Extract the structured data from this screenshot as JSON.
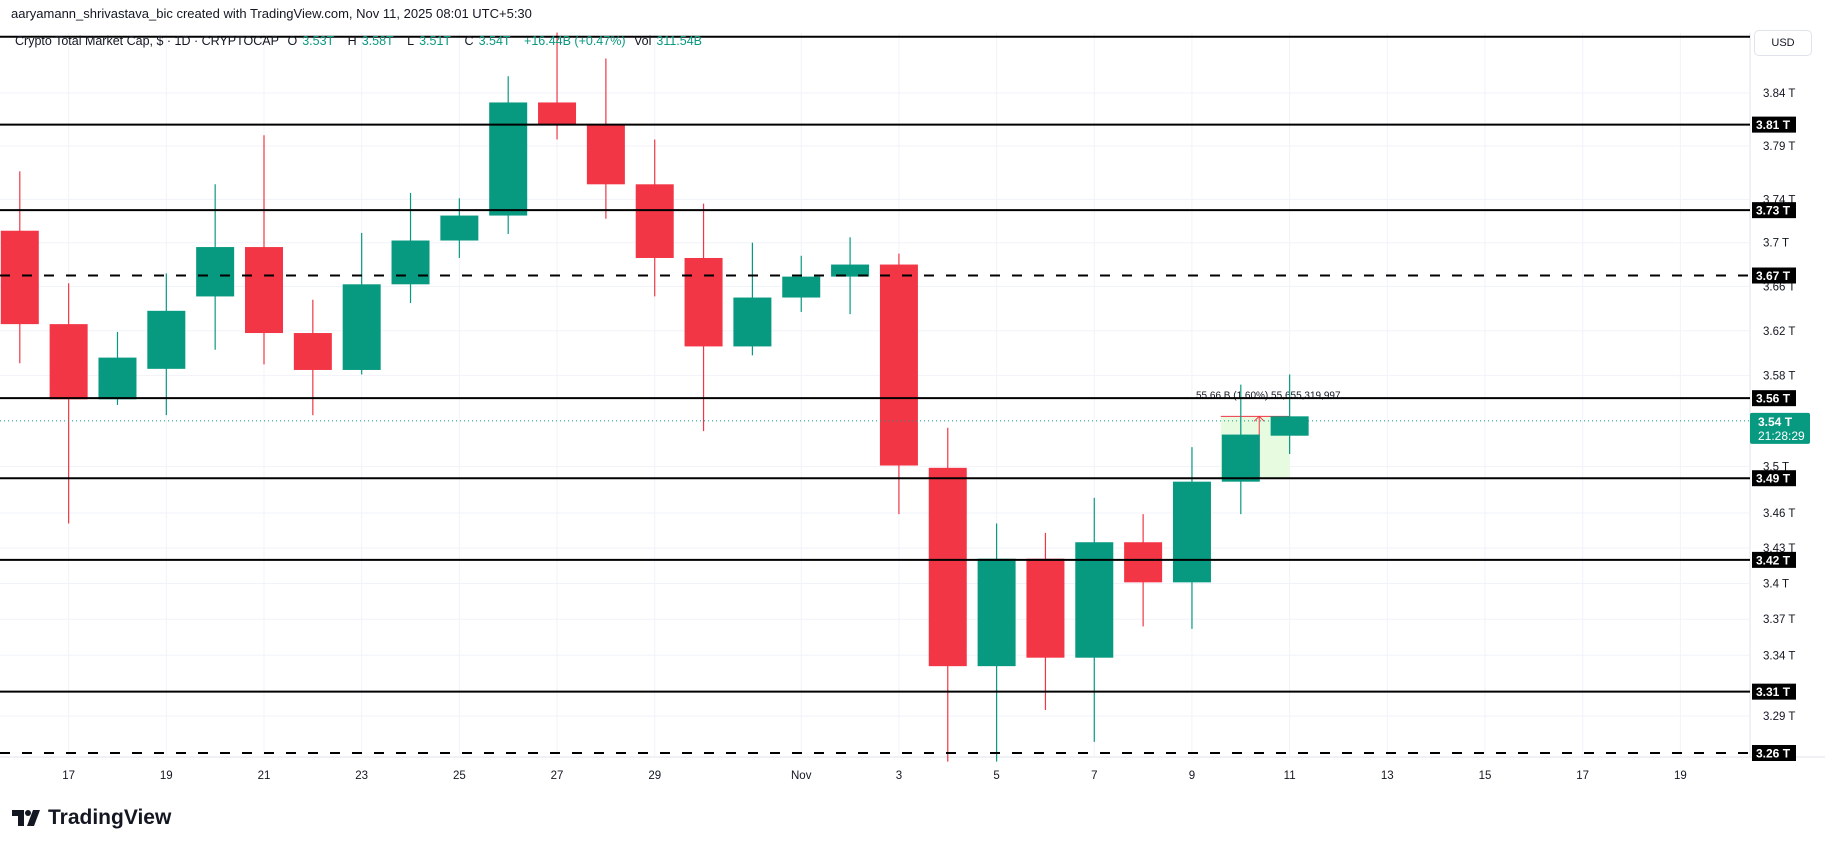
{
  "attribution": "aaryamann_shrivastava_bic created with TradingView.com, Nov 11, 2025 08:01 UTC+5:30",
  "legend": {
    "symbol": "Crypto Total Market Cap, $ · 1D · CRYPTOCAP",
    "o_label": "O",
    "o": "3.53T",
    "h_label": "H",
    "h": "3.58T",
    "l_label": "L",
    "l": "3.51T",
    "c_label": "C",
    "c": "3.54T",
    "change": "+16.44B (+0.47%)",
    "vol_label": "Vol",
    "vol": "311.54B"
  },
  "currency_button": "USD",
  "logo_text": "TradingView",
  "colors": {
    "up": "#089981",
    "down": "#f23645",
    "line": "#000000",
    "grid": "#f0f3fa",
    "measure_fill": "#e3fadb",
    "measure_stroke": "#f23645"
  },
  "chart_data": {
    "type": "candlestick",
    "scale": "log",
    "grid": true,
    "ylim": [
      3.253,
      3.894
    ],
    "x_ticks": [
      {
        "day": 1,
        "label": "17"
      },
      {
        "day": 3,
        "label": "19"
      },
      {
        "day": 5,
        "label": "21"
      },
      {
        "day": 7,
        "label": "23"
      },
      {
        "day": 9,
        "label": "25"
      },
      {
        "day": 11,
        "label": "27"
      },
      {
        "day": 13,
        "label": "29"
      },
      {
        "day": 16,
        "label": "Nov"
      },
      {
        "day": 18,
        "label": "3"
      },
      {
        "day": 20,
        "label": "5"
      },
      {
        "day": 22,
        "label": "7"
      },
      {
        "day": 24,
        "label": "9"
      },
      {
        "day": 26,
        "label": "11"
      },
      {
        "day": 28,
        "label": "13"
      },
      {
        "day": 30,
        "label": "15"
      },
      {
        "day": 32,
        "label": "17"
      },
      {
        "day": 34,
        "label": "19"
      }
    ],
    "y_ticks": [
      {
        "value": 3.84,
        "label": "3.84 T"
      },
      {
        "value": 3.79,
        "label": "3.79 T"
      },
      {
        "value": 3.74,
        "label": "3.74 T"
      },
      {
        "value": 3.7,
        "label": "3.7 T"
      },
      {
        "value": 3.66,
        "label": "3.66 T"
      },
      {
        "value": 3.62,
        "label": "3.62 T"
      },
      {
        "value": 3.58,
        "label": "3.58 T"
      },
      {
        "value": 3.5,
        "label": "3.5 T"
      },
      {
        "value": 3.46,
        "label": "3.46 T"
      },
      {
        "value": 3.43,
        "label": "3.43 T"
      },
      {
        "value": 3.4,
        "label": "3.4 T"
      },
      {
        "value": 3.37,
        "label": "3.37 T"
      },
      {
        "value": 3.34,
        "label": "3.34 T"
      },
      {
        "value": 3.29,
        "label": "3.29 T"
      }
    ],
    "candles": [
      {
        "date": "Oct 16",
        "o": 3.711,
        "h": 3.766,
        "l": 3.591,
        "c": 3.626
      },
      {
        "date": "Oct 17",
        "o": 3.626,
        "h": 3.663,
        "l": 3.451,
        "c": 3.559
      },
      {
        "date": "Oct 18",
        "o": 3.559,
        "h": 3.619,
        "l": 3.554,
        "c": 3.596
      },
      {
        "date": "Oct 19",
        "o": 3.586,
        "h": 3.672,
        "l": 3.545,
        "c": 3.638
      },
      {
        "date": "Oct 20",
        "o": 3.651,
        "h": 3.754,
        "l": 3.603,
        "c": 3.696
      },
      {
        "date": "Oct 21",
        "o": 3.696,
        "h": 3.8,
        "l": 3.59,
        "c": 3.618
      },
      {
        "date": "Oct 22",
        "o": 3.618,
        "h": 3.648,
        "l": 3.545,
        "c": 3.585
      },
      {
        "date": "Oct 23",
        "o": 3.585,
        "h": 3.709,
        "l": 3.581,
        "c": 3.662
      },
      {
        "date": "Oct 24",
        "o": 3.662,
        "h": 3.746,
        "l": 3.645,
        "c": 3.702
      },
      {
        "date": "Oct 25",
        "o": 3.702,
        "h": 3.741,
        "l": 3.686,
        "c": 3.725
      },
      {
        "date": "Oct 26",
        "o": 3.725,
        "h": 3.856,
        "l": 3.708,
        "c": 3.831
      },
      {
        "date": "Oct 27",
        "o": 3.831,
        "h": 3.898,
        "l": 3.796,
        "c": 3.81
      },
      {
        "date": "Oct 28",
        "o": 3.81,
        "h": 3.873,
        "l": 3.722,
        "c": 3.754
      },
      {
        "date": "Oct 29",
        "o": 3.754,
        "h": 3.796,
        "l": 3.651,
        "c": 3.686
      },
      {
        "date": "Oct 30",
        "o": 3.686,
        "h": 3.736,
        "l": 3.531,
        "c": 3.606
      },
      {
        "date": "Oct 31",
        "o": 3.606,
        "h": 3.7,
        "l": 3.598,
        "c": 3.65
      },
      {
        "date": "Nov 1",
        "o": 3.65,
        "h": 3.688,
        "l": 3.637,
        "c": 3.669
      },
      {
        "date": "Nov 2",
        "o": 3.669,
        "h": 3.705,
        "l": 3.635,
        "c": 3.68
      },
      {
        "date": "Nov 3",
        "o": 3.68,
        "h": 3.69,
        "l": 3.459,
        "c": 3.501
      },
      {
        "date": "Nov 4",
        "o": 3.499,
        "h": 3.534,
        "l": 3.253,
        "c": 3.331
      },
      {
        "date": "Nov 5",
        "o": 3.331,
        "h": 3.451,
        "l": 3.253,
        "c": 3.421
      },
      {
        "date": "Nov 6",
        "o": 3.421,
        "h": 3.443,
        "l": 3.295,
        "c": 3.338
      },
      {
        "date": "Nov 7",
        "o": 3.338,
        "h": 3.473,
        "l": 3.269,
        "c": 3.435
      },
      {
        "date": "Nov 8",
        "o": 3.435,
        "h": 3.459,
        "l": 3.364,
        "c": 3.401
      },
      {
        "date": "Nov 9",
        "o": 3.401,
        "h": 3.517,
        "l": 3.362,
        "c": 3.487
      },
      {
        "date": "Nov 10",
        "o": 3.487,
        "h": 3.572,
        "l": 3.459,
        "c": 3.528
      },
      {
        "date": "Nov 11",
        "o": 3.527,
        "h": 3.581,
        "l": 3.511,
        "c": 3.544
      }
    ],
    "horizontal_lines": [
      {
        "value": 3.894,
        "style": "solid",
        "label": ""
      },
      {
        "value": 3.81,
        "style": "solid",
        "label": "3.81 T"
      },
      {
        "value": 3.73,
        "style": "solid",
        "label": "3.73 T"
      },
      {
        "value": 3.67,
        "style": "dashed",
        "label": "3.67 T"
      },
      {
        "value": 3.56,
        "style": "solid",
        "label": "3.56 T"
      },
      {
        "value": 3.49,
        "style": "solid",
        "label": "3.49 T"
      },
      {
        "value": 3.42,
        "style": "solid",
        "label": "3.42 T"
      },
      {
        "value": 3.31,
        "style": "solid",
        "label": "3.31 T"
      },
      {
        "value": 3.26,
        "style": "dashed",
        "label": "3.26 T"
      }
    ],
    "last_price": {
      "value": 3.54,
      "label": "3.54 T",
      "countdown": "21:28:29"
    },
    "measure": {
      "from_day": 25,
      "to_day": 26,
      "from_value": 3.49,
      "to_value": 3.544,
      "label": "55.66 B (1.60%) 55,655,319,997"
    }
  }
}
